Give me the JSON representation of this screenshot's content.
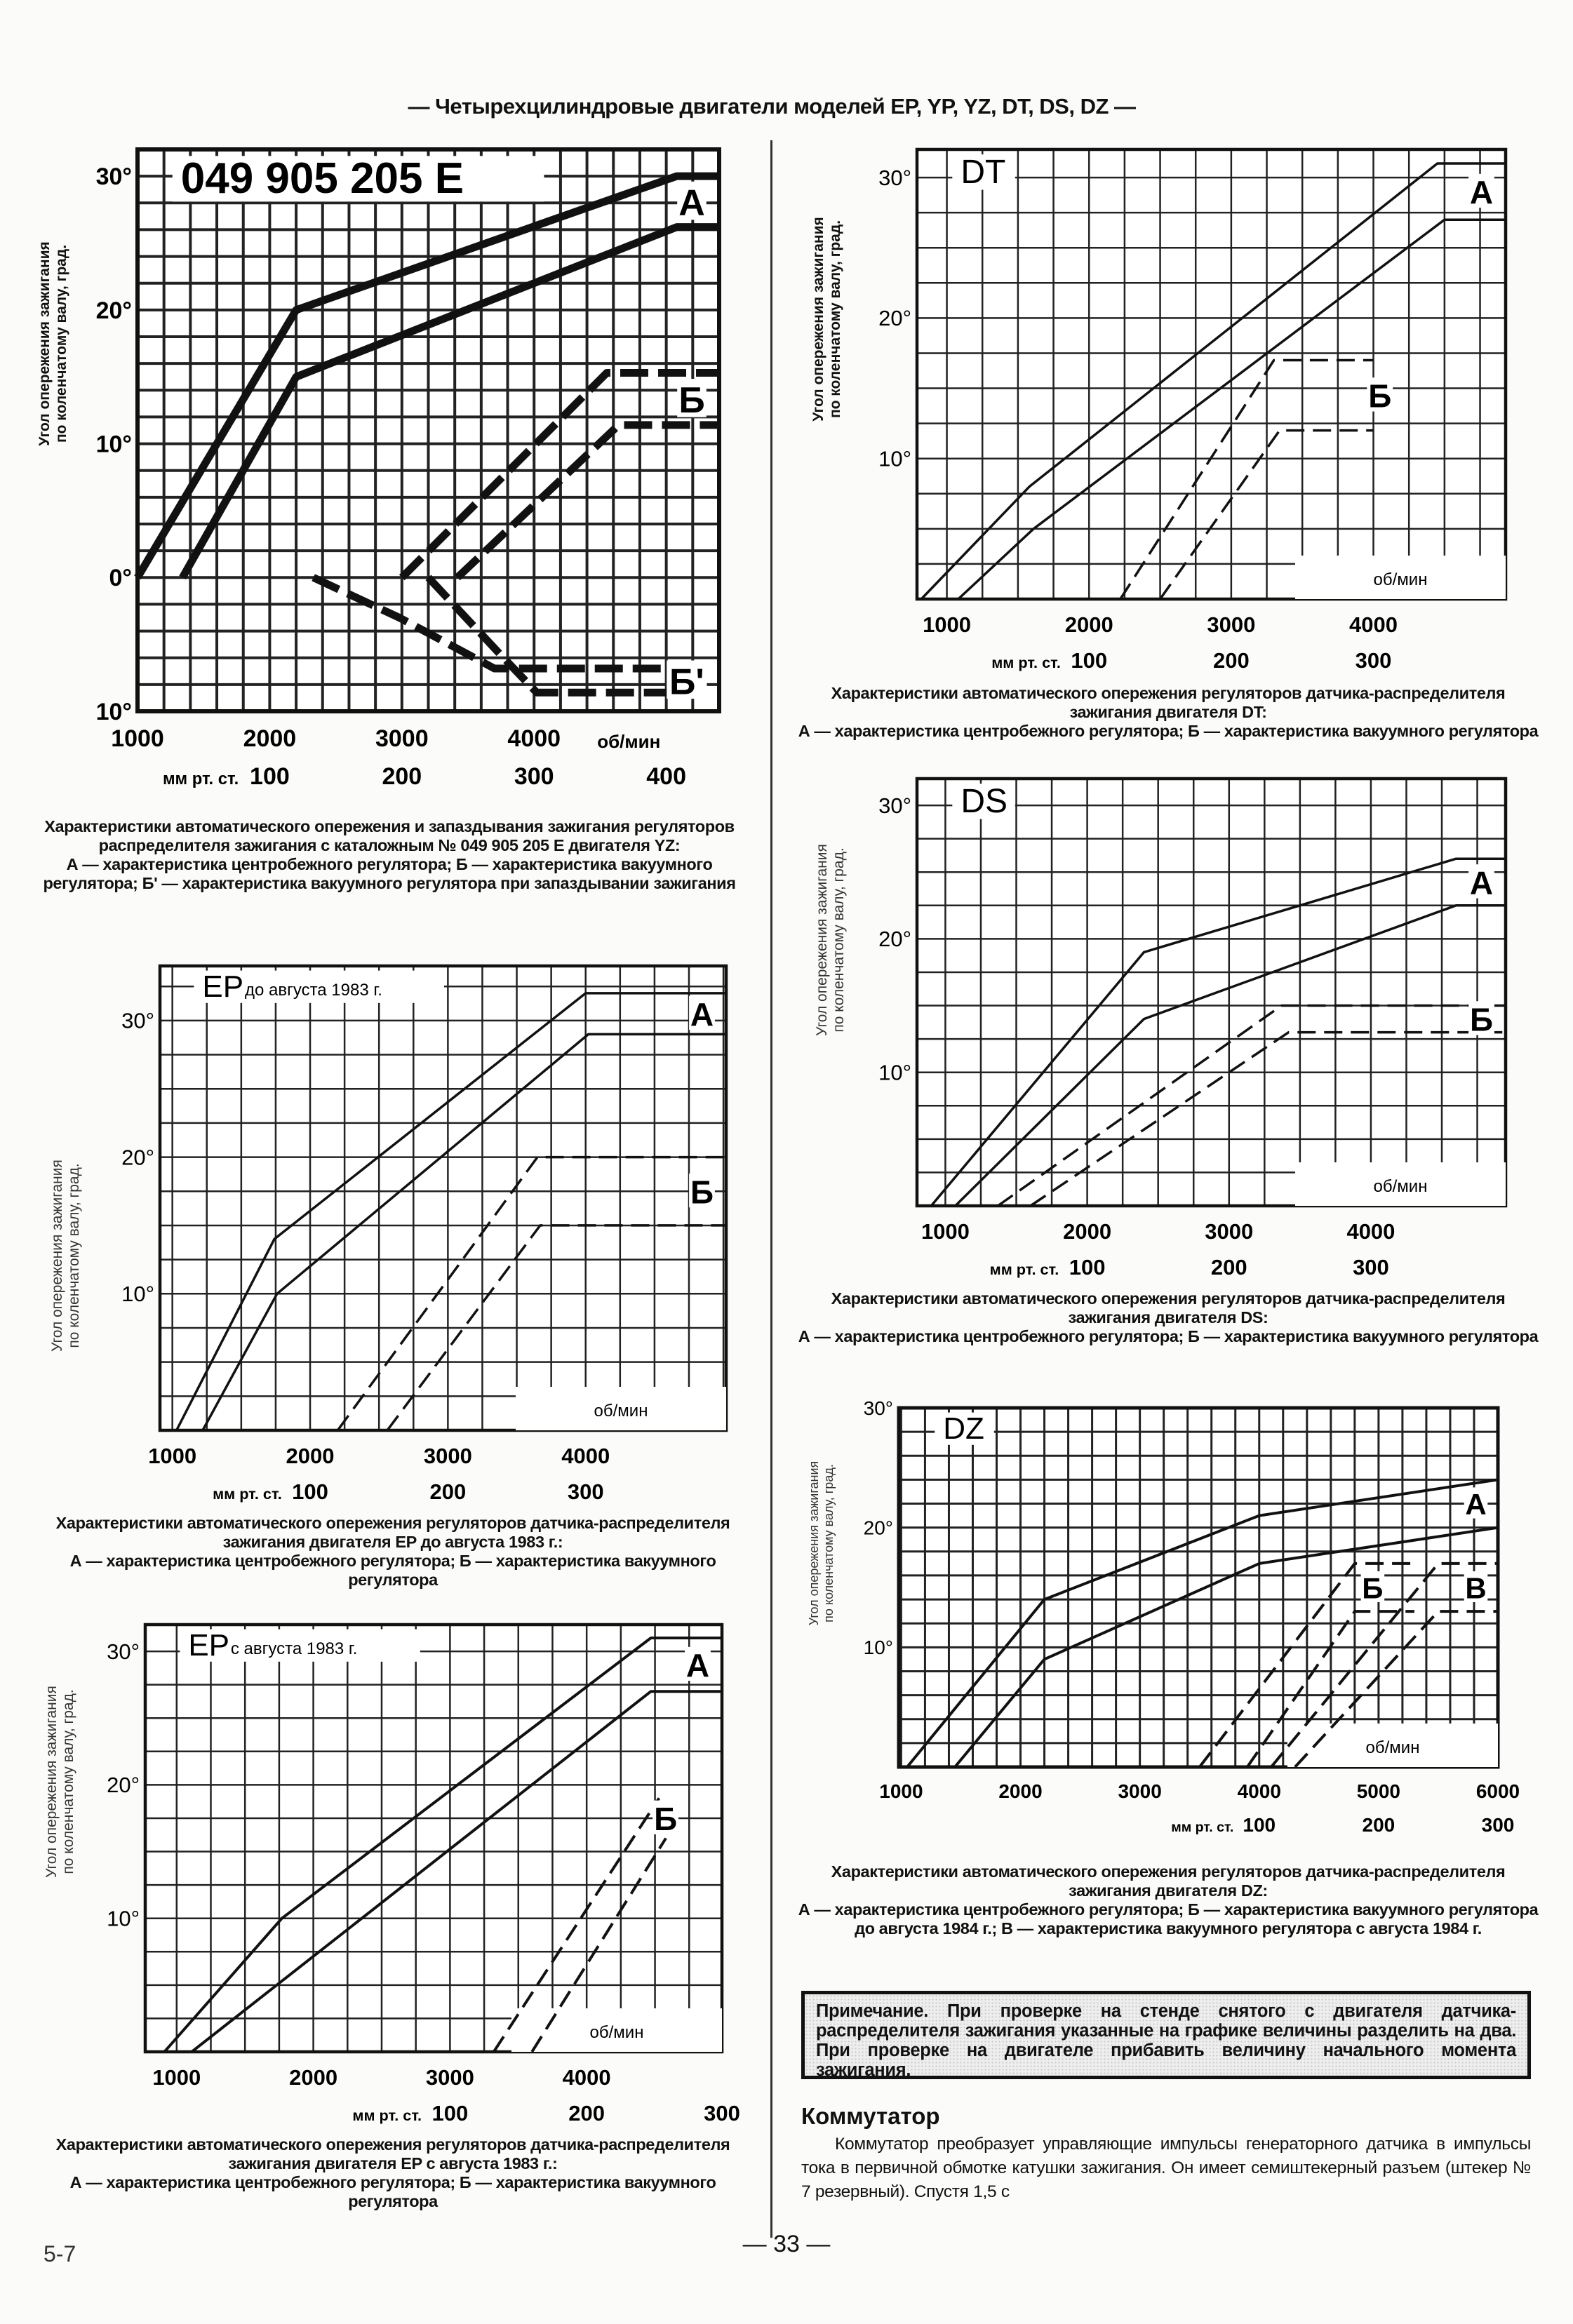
{
  "header": "— Четырехцилиндровые двигатели моделей EP, YP, YZ, DT, DS, DZ —",
  "y_axis_label": [
    "Угол опережения зажигания",
    "по коленчатому валу, град."
  ],
  "x_unit": "об/мин",
  "vacuum_unit": "мм рт. ст.",
  "chart_data": [
    {
      "type": "line",
      "title": "049 905 205 E",
      "xlim": [
        1000,
        5400
      ],
      "ylim": [
        -10,
        32
      ],
      "grid": true,
      "y_ticks": [
        {
          "value": 30,
          "label": "30°"
        },
        {
          "value": 20,
          "label": "20°"
        },
        {
          "value": 10,
          "label": "10°"
        },
        {
          "value": 0,
          "label": "0°"
        },
        {
          "value": -10,
          "label": "10°"
        }
      ],
      "x_ticks": [
        {
          "value": 1000,
          "label": "1000"
        },
        {
          "value": 2000,
          "label": "2000"
        },
        {
          "value": 3000,
          "label": "3000"
        },
        {
          "value": 4000,
          "label": "4000"
        }
      ],
      "vacuum_ticks": [
        {
          "at_rpm": 2000,
          "label": "100"
        },
        {
          "at_rpm": 3000,
          "label": "200"
        },
        {
          "at_rpm": 4000,
          "label": "300"
        },
        {
          "at_rpm": 5000,
          "label": "400"
        }
      ],
      "series": [
        {
          "group": "А",
          "dashed": false,
          "points": [
            [
              1000,
              0
            ],
            [
              2200,
              20
            ],
            [
              5080,
              30
            ],
            [
              5400,
              30
            ]
          ]
        },
        {
          "group": "А",
          "dashed": false,
          "points": [
            [
              1340,
              0
            ],
            [
              2200,
              15
            ],
            [
              5080,
              26.2
            ],
            [
              5400,
              26.2
            ]
          ]
        },
        {
          "group": "Б",
          "dashed": true,
          "points": [
            [
              3000,
              0
            ],
            [
              4550,
              15.3
            ],
            [
              5400,
              15.3
            ]
          ]
        },
        {
          "group": "Б",
          "dashed": true,
          "points": [
            [
              3420,
              0
            ],
            [
              4640,
              11.4
            ],
            [
              5400,
              11.4
            ]
          ]
        },
        {
          "group": "Б'",
          "dashed": true,
          "points": [
            [
              2330,
              0
            ],
            [
              2980,
              -3
            ],
            [
              3700,
              -6.8
            ],
            [
              5100,
              -6.8
            ]
          ]
        },
        {
          "group": "Б'",
          "dashed": true,
          "points": [
            [
              3200,
              0
            ],
            [
              3730,
              -5.6
            ],
            [
              4020,
              -8.6
            ],
            [
              5100,
              -8.6
            ]
          ]
        }
      ],
      "labels": [
        "А",
        "Б",
        "Б'"
      ],
      "caption": [
        "Характеристики автоматического опережения и запаздывания зажигания регуляторов распределителя зажигания с каталожным № 049 905 205 E двигателя YZ:",
        "А — характеристика центробежного регулятора; Б — характеристика вакуумного регулятора; Б' — характеристика вакуумного регулятора при запаздывании зажигания"
      ]
    },
    {
      "type": "line",
      "title": "EP",
      "title_note": "до августа 1983 г.",
      "xlim": [
        910,
        5020
      ],
      "ylim": [
        0,
        34
      ],
      "grid": true,
      "y_ticks": [
        {
          "value": 30,
          "label": "30°"
        },
        {
          "value": 20,
          "label": "20°"
        },
        {
          "value": 10,
          "label": "10°"
        }
      ],
      "x_ticks": [
        {
          "value": 1000,
          "label": "1000"
        },
        {
          "value": 2000,
          "label": "2000"
        },
        {
          "value": 3000,
          "label": "3000"
        },
        {
          "value": 4000,
          "label": "4000"
        }
      ],
      "vacuum_ticks": [
        {
          "at_rpm": 2000,
          "label": "100"
        },
        {
          "at_rpm": 3000,
          "label": "200"
        },
        {
          "at_rpm": 4000,
          "label": "300"
        }
      ],
      "series": [
        {
          "group": "А",
          "dashed": false,
          "points": [
            [
              1030,
              0
            ],
            [
              1740,
              14
            ],
            [
              4000,
              32
            ],
            [
              5020,
              32
            ]
          ]
        },
        {
          "group": "А",
          "dashed": false,
          "points": [
            [
              1220,
              0
            ],
            [
              1760,
              10
            ],
            [
              4020,
              29
            ],
            [
              5020,
              29
            ]
          ]
        },
        {
          "group": "Б",
          "dashed": true,
          "points": [
            [
              2200,
              0
            ],
            [
              3650,
              20
            ],
            [
              5020,
              20
            ]
          ]
        },
        {
          "group": "Б",
          "dashed": true,
          "points": [
            [
              2560,
              0
            ],
            [
              3670,
              15
            ],
            [
              5020,
              15
            ]
          ]
        }
      ],
      "labels": [
        "А",
        "Б"
      ],
      "caption": [
        "Характеристики автоматического опережения регуляторов датчика-распределителя зажигания двигателя EP до августа 1983 г.:",
        "А — характеристика центробежного регулятора; Б — характеристика вакуумного регулятора"
      ]
    },
    {
      "type": "line",
      "title": "EP",
      "title_note": "с августа 1983 г.",
      "xlim": [
        770,
        4990
      ],
      "ylim": [
        0,
        32
      ],
      "grid": true,
      "y_ticks": [
        {
          "value": 30,
          "label": "30°"
        },
        {
          "value": 20,
          "label": "20°"
        },
        {
          "value": 10,
          "label": "10°"
        }
      ],
      "x_ticks": [
        {
          "value": 1000,
          "label": "1000"
        },
        {
          "value": 2000,
          "label": "2000"
        },
        {
          "value": 3000,
          "label": "3000"
        },
        {
          "value": 4000,
          "label": "4000"
        }
      ],
      "vacuum_ticks": [
        {
          "at_rpm": 3000,
          "label": "100"
        },
        {
          "at_rpm": 4000,
          "label": "200"
        },
        {
          "at_rpm": 4990,
          "label": "300"
        }
      ],
      "series": [
        {
          "group": "А",
          "dashed": false,
          "points": [
            [
              910,
              0
            ],
            [
              1770,
              10
            ],
            [
              4470,
              31
            ],
            [
              4990,
              31
            ]
          ]
        },
        {
          "group": "А",
          "dashed": false,
          "points": [
            [
              1110,
              0
            ],
            [
              4470,
              27
            ],
            [
              4990,
              27
            ]
          ]
        },
        {
          "group": "Б",
          "dashed": true,
          "points": [
            [
              3320,
              0
            ],
            [
              4530,
              19
            ]
          ]
        },
        {
          "group": "Б",
          "dashed": true,
          "points": [
            [
              3600,
              0
            ],
            [
              4580,
              16
            ]
          ]
        }
      ],
      "labels": [
        "А",
        "Б"
      ],
      "caption": [
        "Характеристики автоматического опережения регуляторов датчика-распределителя зажигания двигателя EP с августа 1983 г.:",
        "А — характеристика центробежного регулятора; Б — характеристика вакуумного регулятора"
      ]
    },
    {
      "type": "line",
      "title": "DT",
      "xlim": [
        790,
        4930
      ],
      "ylim": [
        0,
        32
      ],
      "grid": true,
      "y_ticks": [
        {
          "value": 30,
          "label": "30°"
        },
        {
          "value": 20,
          "label": "20°"
        },
        {
          "value": 10,
          "label": "10°"
        }
      ],
      "x_ticks": [
        {
          "value": 1000,
          "label": "1000"
        },
        {
          "value": 2000,
          "label": "2000"
        },
        {
          "value": 3000,
          "label": "3000"
        },
        {
          "value": 4000,
          "label": "4000"
        }
      ],
      "vacuum_ticks": [
        {
          "at_rpm": 2000,
          "label": "100"
        },
        {
          "at_rpm": 3000,
          "label": "200"
        },
        {
          "at_rpm": 4000,
          "label": "300"
        }
      ],
      "series": [
        {
          "group": "А",
          "dashed": false,
          "points": [
            [
              820,
              0
            ],
            [
              1580,
              8
            ],
            [
              4450,
              31
            ],
            [
              4930,
              31
            ]
          ]
        },
        {
          "group": "А",
          "dashed": false,
          "points": [
            [
              1080,
              0
            ],
            [
              1610,
              5
            ],
            [
              4500,
              27
            ],
            [
              4930,
              27
            ]
          ]
        },
        {
          "group": "Б",
          "dashed": true,
          "points": [
            [
              2220,
              0
            ],
            [
              3300,
              17
            ],
            [
              4000,
              17
            ]
          ]
        },
        {
          "group": "Б",
          "dashed": true,
          "points": [
            [
              2500,
              0
            ],
            [
              3340,
              12
            ],
            [
              4000,
              12
            ]
          ]
        }
      ],
      "labels": [
        "А",
        "Б"
      ],
      "caption": [
        "Характеристики автоматического опережения регуляторов датчика-распределителя зажигания двигателя DT:",
        "А — характеристика центробежного регулятора; Б — характеристика вакуумного регулятора"
      ]
    },
    {
      "type": "line",
      "title": "DS",
      "xlim": [
        800,
        4950
      ],
      "ylim": [
        0,
        32
      ],
      "grid": true,
      "y_ticks": [
        {
          "value": 30,
          "label": "30°"
        },
        {
          "value": 20,
          "label": "20°"
        },
        {
          "value": 10,
          "label": "10°"
        }
      ],
      "x_ticks": [
        {
          "value": 1000,
          "label": "1000"
        },
        {
          "value": 2000,
          "label": "2000"
        },
        {
          "value": 3000,
          "label": "3000"
        },
        {
          "value": 4000,
          "label": "4000"
        }
      ],
      "vacuum_ticks": [
        {
          "at_rpm": 2000,
          "label": "100"
        },
        {
          "at_rpm": 3000,
          "label": "200"
        },
        {
          "at_rpm": 4000,
          "label": "300"
        }
      ],
      "series": [
        {
          "group": "А",
          "dashed": false,
          "points": [
            [
              900,
              0
            ],
            [
              2400,
              19
            ],
            [
              4600,
              26
            ],
            [
              4950,
              26
            ]
          ]
        },
        {
          "group": "А",
          "dashed": false,
          "points": [
            [
              1070,
              0
            ],
            [
              2400,
              14
            ],
            [
              4600,
              22.5
            ],
            [
              4950,
              22.5
            ]
          ]
        },
        {
          "group": "Б",
          "dashed": true,
          "points": [
            [
              1370,
              0
            ],
            [
              3370,
              15
            ],
            [
              4950,
              15
            ]
          ]
        },
        {
          "group": "Б",
          "dashed": true,
          "points": [
            [
              1600,
              0
            ],
            [
              3420,
              13
            ],
            [
              4950,
              13
            ]
          ]
        }
      ],
      "labels": [
        "А",
        "Б"
      ],
      "caption": [
        "Характеристики автоматического опережения регуляторов датчика-распределителя зажигания двигателя DS:",
        "А — характеристика центробежного регулятора; Б — характеристика вакуумного регулятора"
      ]
    },
    {
      "type": "line",
      "title": "DZ",
      "xlim": [
        980,
        6000
      ],
      "ylim": [
        0,
        30
      ],
      "grid": true,
      "y_ticks": [
        {
          "value": 30,
          "label": "30°"
        },
        {
          "value": 20,
          "label": "20°"
        },
        {
          "value": 10,
          "label": "10°"
        }
      ],
      "x_ticks": [
        {
          "value": 1000,
          "label": "1000"
        },
        {
          "value": 2000,
          "label": "2000"
        },
        {
          "value": 3000,
          "label": "3000"
        },
        {
          "value": 4000,
          "label": "4000"
        },
        {
          "value": 5000,
          "label": "5000"
        },
        {
          "value": 6000,
          "label": "6000"
        }
      ],
      "vacuum_ticks": [
        {
          "at_rpm": 4000,
          "label": "100"
        },
        {
          "at_rpm": 5000,
          "label": "200"
        },
        {
          "at_rpm": 6000,
          "label": "300"
        }
      ],
      "series": [
        {
          "group": "А",
          "dashed": false,
          "points": [
            [
              1050,
              0
            ],
            [
              2200,
              14
            ],
            [
              4000,
              21
            ],
            [
              6000,
              24
            ]
          ]
        },
        {
          "group": "А",
          "dashed": false,
          "points": [
            [
              1450,
              0
            ],
            [
              2200,
              9
            ],
            [
              4000,
              17
            ],
            [
              6000,
              20
            ]
          ]
        },
        {
          "group": "Б",
          "dashed": true,
          "points": [
            [
              3500,
              0
            ],
            [
              4800,
              17
            ],
            [
              5300,
              17
            ]
          ]
        },
        {
          "group": "Б",
          "dashed": true,
          "points": [
            [
              3900,
              0
            ],
            [
              4800,
              13
            ],
            [
              5300,
              13
            ]
          ]
        },
        {
          "group": "В",
          "dashed": true,
          "points": [
            [
              4100,
              0
            ],
            [
              5500,
              17
            ],
            [
              6000,
              17
            ]
          ]
        },
        {
          "group": "В",
          "dashed": true,
          "points": [
            [
              4300,
              0
            ],
            [
              5500,
              13
            ],
            [
              6000,
              13
            ]
          ]
        }
      ],
      "labels": [
        "Б",
        "В",
        "А"
      ],
      "caption": [
        "Характеристики автоматического опережения регуляторов датчика-распределителя зажигания двигателя DZ:",
        "А — характеристика центробежного регулятора; Б — характеристика вакуумного регулятора до августа 1984 г.; В — характеристика вакуумного регулятора с августа 1984 г."
      ]
    }
  ],
  "note": "Примечание. При проверке на стенде снятого с двигателя датчика-распределителя зажигания указанные на графике величины разделить на два. При проверке на двигателе прибавить величину начального момента зажигания.",
  "section_title": "Коммутатор",
  "paragraph": "Коммутатор преобразует управляющие импульсы генераторного датчика в импульсы тока в первичной обмотке катушки зажигания. Он имеет семиштекерный разъем (штекер № 7 резервный). Спустя 1,5 с",
  "page_number": "— 33 —",
  "page_code": "5-7"
}
